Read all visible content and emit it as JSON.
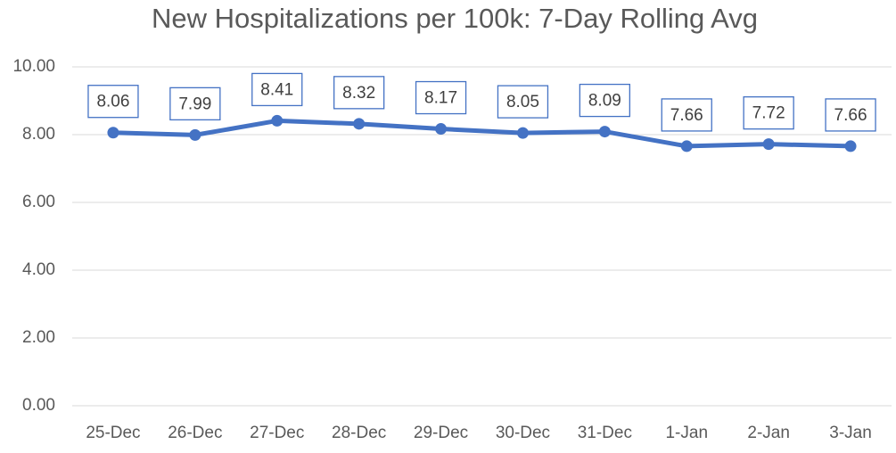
{
  "chart_data": {
    "type": "line",
    "title": "New Hospitalizations per 100k: 7-Day Rolling Avg",
    "categories": [
      "25-Dec",
      "26-Dec",
      "27-Dec",
      "28-Dec",
      "29-Dec",
      "30-Dec",
      "31-Dec",
      "1-Jan",
      "2-Jan",
      "3-Jan"
    ],
    "series": [
      {
        "color": "#4472c4",
        "values": [
          8.06,
          7.99,
          8.41,
          8.32,
          8.17,
          8.05,
          8.09,
          7.66,
          7.72,
          7.66
        ]
      }
    ],
    "ylim": [
      0,
      10
    ],
    "yticks": [
      {
        "value": 0,
        "label": "0.00"
      },
      {
        "value": 2,
        "label": "2.00"
      },
      {
        "value": 4,
        "label": "4.00"
      },
      {
        "value": 6,
        "label": "6.00"
      },
      {
        "value": 8,
        "label": "8.00"
      },
      {
        "value": 10,
        "label": "10.00"
      }
    ],
    "grid": true
  }
}
